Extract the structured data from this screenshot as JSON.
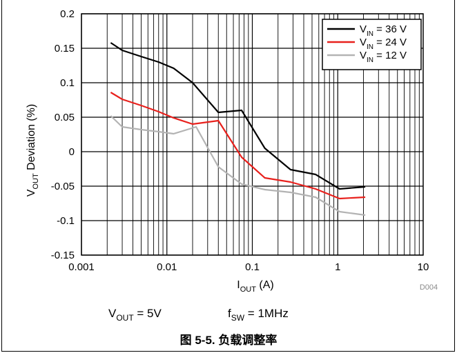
{
  "chart_data": {
    "type": "line",
    "xscale": "log",
    "xlim": [
      0.001,
      10
    ],
    "ylim": [
      -0.15,
      0.2
    ],
    "grid": true,
    "xticks": [
      {
        "value": 0.001,
        "label": "0.001"
      },
      {
        "value": 0.01,
        "label": "0.01"
      },
      {
        "value": 0.1,
        "label": "0.1"
      },
      {
        "value": 1,
        "label": "1"
      },
      {
        "value": 10,
        "label": "10"
      }
    ],
    "yticks": [
      {
        "value": 0.2,
        "label": "0.2"
      },
      {
        "value": 0.15,
        "label": "0.15"
      },
      {
        "value": 0.1,
        "label": "0.1"
      },
      {
        "value": 0.05,
        "label": "0.05"
      },
      {
        "value": 0,
        "label": "0"
      },
      {
        "value": -0.05,
        "label": "-0.05"
      },
      {
        "value": -0.1,
        "label": "-0.1"
      },
      {
        "value": -0.15,
        "label": "-0.15"
      }
    ],
    "xlabel": {
      "main": "I",
      "sub": "OUT",
      "rest": " (A)"
    },
    "ylabel": {
      "main": "V",
      "sub": "OUT",
      "rest": " Deviation (%)"
    },
    "legend_position": "top-right",
    "series": [
      {
        "name": {
          "main": "V",
          "sub": "IN",
          "rest": " = 36 V"
        },
        "color": "#000000",
        "x": [
          0.0022,
          0.003,
          0.005,
          0.008,
          0.012,
          0.02,
          0.04,
          0.075,
          0.14,
          0.28,
          0.55,
          1.05,
          2.1
        ],
        "y": [
          0.158,
          0.147,
          0.138,
          0.13,
          0.121,
          0.1,
          0.057,
          0.06,
          0.005,
          -0.026,
          -0.033,
          -0.054,
          -0.051
        ]
      },
      {
        "name": {
          "main": "V",
          "sub": "IN",
          "rest": " = 24 V"
        },
        "color": "#e8201c",
        "x": [
          0.0022,
          0.003,
          0.005,
          0.008,
          0.012,
          0.02,
          0.04,
          0.075,
          0.14,
          0.28,
          0.55,
          1.05,
          2.1
        ],
        "y": [
          0.086,
          0.076,
          0.067,
          0.058,
          0.049,
          0.04,
          0.045,
          -0.008,
          -0.038,
          -0.044,
          -0.054,
          -0.068,
          -0.066
        ]
      },
      {
        "name": {
          "main": "V",
          "sub": "IN",
          "rest": " = 12 V"
        },
        "color": "#b3b3b3",
        "x": [
          0.0022,
          0.003,
          0.005,
          0.008,
          0.012,
          0.022,
          0.04,
          0.075,
          0.14,
          0.28,
          0.55,
          1.05,
          2.1
        ],
        "y": [
          0.052,
          0.036,
          0.032,
          0.029,
          0.026,
          0.036,
          -0.022,
          -0.047,
          -0.055,
          -0.059,
          -0.066,
          -0.087,
          -0.092
        ]
      }
    ]
  },
  "figure_code": "D004",
  "conditions": [
    {
      "main": "V",
      "sub": "OUT",
      "rest": " = 5V"
    },
    {
      "main": "f",
      "sub": "SW",
      "rest": " = 1MHz"
    }
  ],
  "caption": "图 5-5. 负载调整率"
}
